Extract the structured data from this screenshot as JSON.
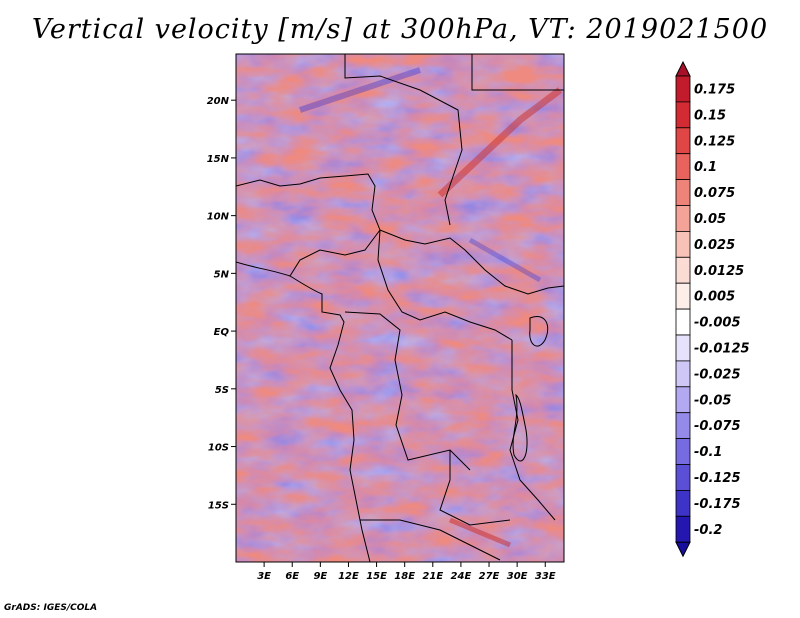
{
  "title": "Vertical velocity [m/s] at 300hPa, VT: 2019021500",
  "footer": "GrADS: IGES/COLA",
  "map": {
    "lon_range": [
      0,
      35
    ],
    "lat_range": [
      -20,
      24
    ],
    "lat_ticks": [
      {
        "value": 20,
        "label": "20N"
      },
      {
        "value": 15,
        "label": "15N"
      },
      {
        "value": 10,
        "label": "10N"
      },
      {
        "value": 5,
        "label": "5N"
      },
      {
        "value": 0,
        "label": "EQ"
      },
      {
        "value": -5,
        "label": "5S"
      },
      {
        "value": -10,
        "label": "10S"
      },
      {
        "value": -15,
        "label": "15S"
      }
    ],
    "lon_ticks": [
      {
        "value": 3,
        "label": "3E"
      },
      {
        "value": 6,
        "label": "6E"
      },
      {
        "value": 9,
        "label": "9E"
      },
      {
        "value": 12,
        "label": "12E"
      },
      {
        "value": 15,
        "label": "15E"
      },
      {
        "value": 18,
        "label": "18E"
      },
      {
        "value": 21,
        "label": "21E"
      },
      {
        "value": 24,
        "label": "24E"
      },
      {
        "value": 27,
        "label": "27E"
      },
      {
        "value": 30,
        "label": "30E"
      },
      {
        "value": 33,
        "label": "33E"
      }
    ]
  },
  "colorbar": {
    "levels": [
      {
        "label": "0.175",
        "color": "#c21b2b"
      },
      {
        "label": "0.15",
        "color": "#d22b33"
      },
      {
        "label": "0.125",
        "color": "#e04646"
      },
      {
        "label": "0.1",
        "color": "#e8635d"
      },
      {
        "label": "0.075",
        "color": "#ee8379"
      },
      {
        "label": "0.05",
        "color": "#f3a397"
      },
      {
        "label": "0.025",
        "color": "#f8c2b8"
      },
      {
        "label": "0.0125",
        "color": "#fbdcd5"
      },
      {
        "label": "0.005",
        "color": "#fdeeea"
      },
      {
        "label": "-0.005",
        "color": "#ffffff"
      },
      {
        "label": "-0.0125",
        "color": "#e6e2fb"
      },
      {
        "label": "-0.025",
        "color": "#cfc8f6"
      },
      {
        "label": "-0.05",
        "color": "#b2a9f0"
      },
      {
        "label": "-0.075",
        "color": "#948ae9"
      },
      {
        "label": "-0.1",
        "color": "#766be0"
      },
      {
        "label": "-0.125",
        "color": "#5a4fd5"
      },
      {
        "label": "-0.175",
        "color": "#3d33c6"
      },
      {
        "label": "-0.2",
        "color": "#2417b0"
      }
    ],
    "top_color": "#a8102a",
    "bottom_color": "#160d9c"
  }
}
